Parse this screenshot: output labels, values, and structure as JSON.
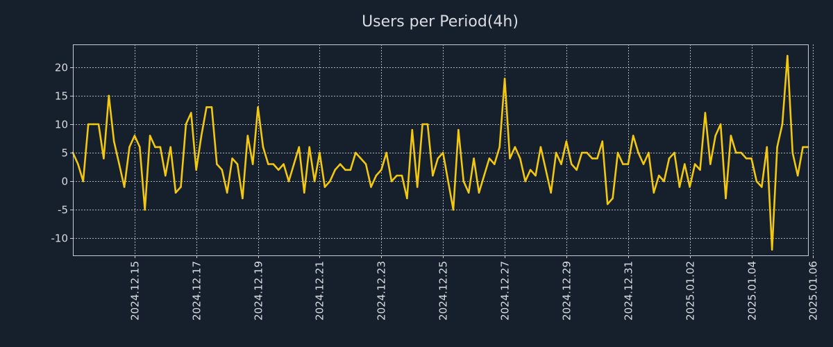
{
  "chart_data": {
    "type": "line",
    "title": "Users per Period(4h)",
    "xlabel": "",
    "ylabel": "",
    "ylim": [
      -13,
      24
    ],
    "yticks": [
      -10,
      -5,
      0,
      5,
      10,
      15,
      20
    ],
    "grid": true,
    "legend": "none",
    "x_start": "2024.12.13 00:00",
    "x_end": "2025.01.06 00:00",
    "interval_hours": 4,
    "xtick_labels": [
      "2024.12.15",
      "2024.12.17",
      "2024.12.19",
      "2024.12.21",
      "2024.12.23",
      "2024.12.25",
      "2024.12.27",
      "2024.12.29",
      "2024.12.31",
      "2025.01.02",
      "2025.01.04",
      "2025.01.06"
    ],
    "xtick_positions": [
      12,
      24,
      36,
      48,
      60,
      72,
      84,
      96,
      108,
      120,
      132,
      144
    ],
    "series": [
      {
        "name": "Users",
        "color": "#f2c811",
        "values": [
          5,
          3,
          0,
          10,
          10,
          10,
          4,
          15,
          7,
          3,
          -1,
          6,
          8,
          6,
          -5,
          8,
          6,
          6,
          1,
          6,
          -2,
          -1,
          10,
          12,
          2,
          8,
          13,
          13,
          3,
          2,
          -2,
          4,
          3,
          -3,
          8,
          3,
          13,
          6,
          3,
          3,
          2,
          3,
          0,
          3,
          6,
          -2,
          6,
          0,
          5,
          -1,
          0,
          2,
          3,
          2,
          2,
          5,
          4,
          3,
          -1,
          1,
          2,
          5,
          0,
          1,
          1,
          -3,
          9,
          -1,
          10,
          10,
          1,
          4,
          5,
          0,
          -5,
          9,
          0,
          -2,
          4,
          -2,
          1,
          4,
          3,
          6,
          18,
          4,
          6,
          4,
          0,
          2,
          1,
          6,
          2,
          -2,
          5,
          3,
          7,
          3,
          2,
          5,
          5,
          4,
          4,
          7,
          -4,
          -3,
          5,
          3,
          3,
          8,
          5,
          3,
          5,
          -2,
          1,
          0,
          4,
          5,
          -1,
          3,
          -1,
          3,
          2,
          12,
          3,
          8,
          10,
          -3,
          8,
          5,
          5,
          4,
          4,
          0,
          -1,
          6,
          -12,
          6,
          10,
          22,
          5,
          1,
          6,
          6
        ]
      }
    ]
  }
}
